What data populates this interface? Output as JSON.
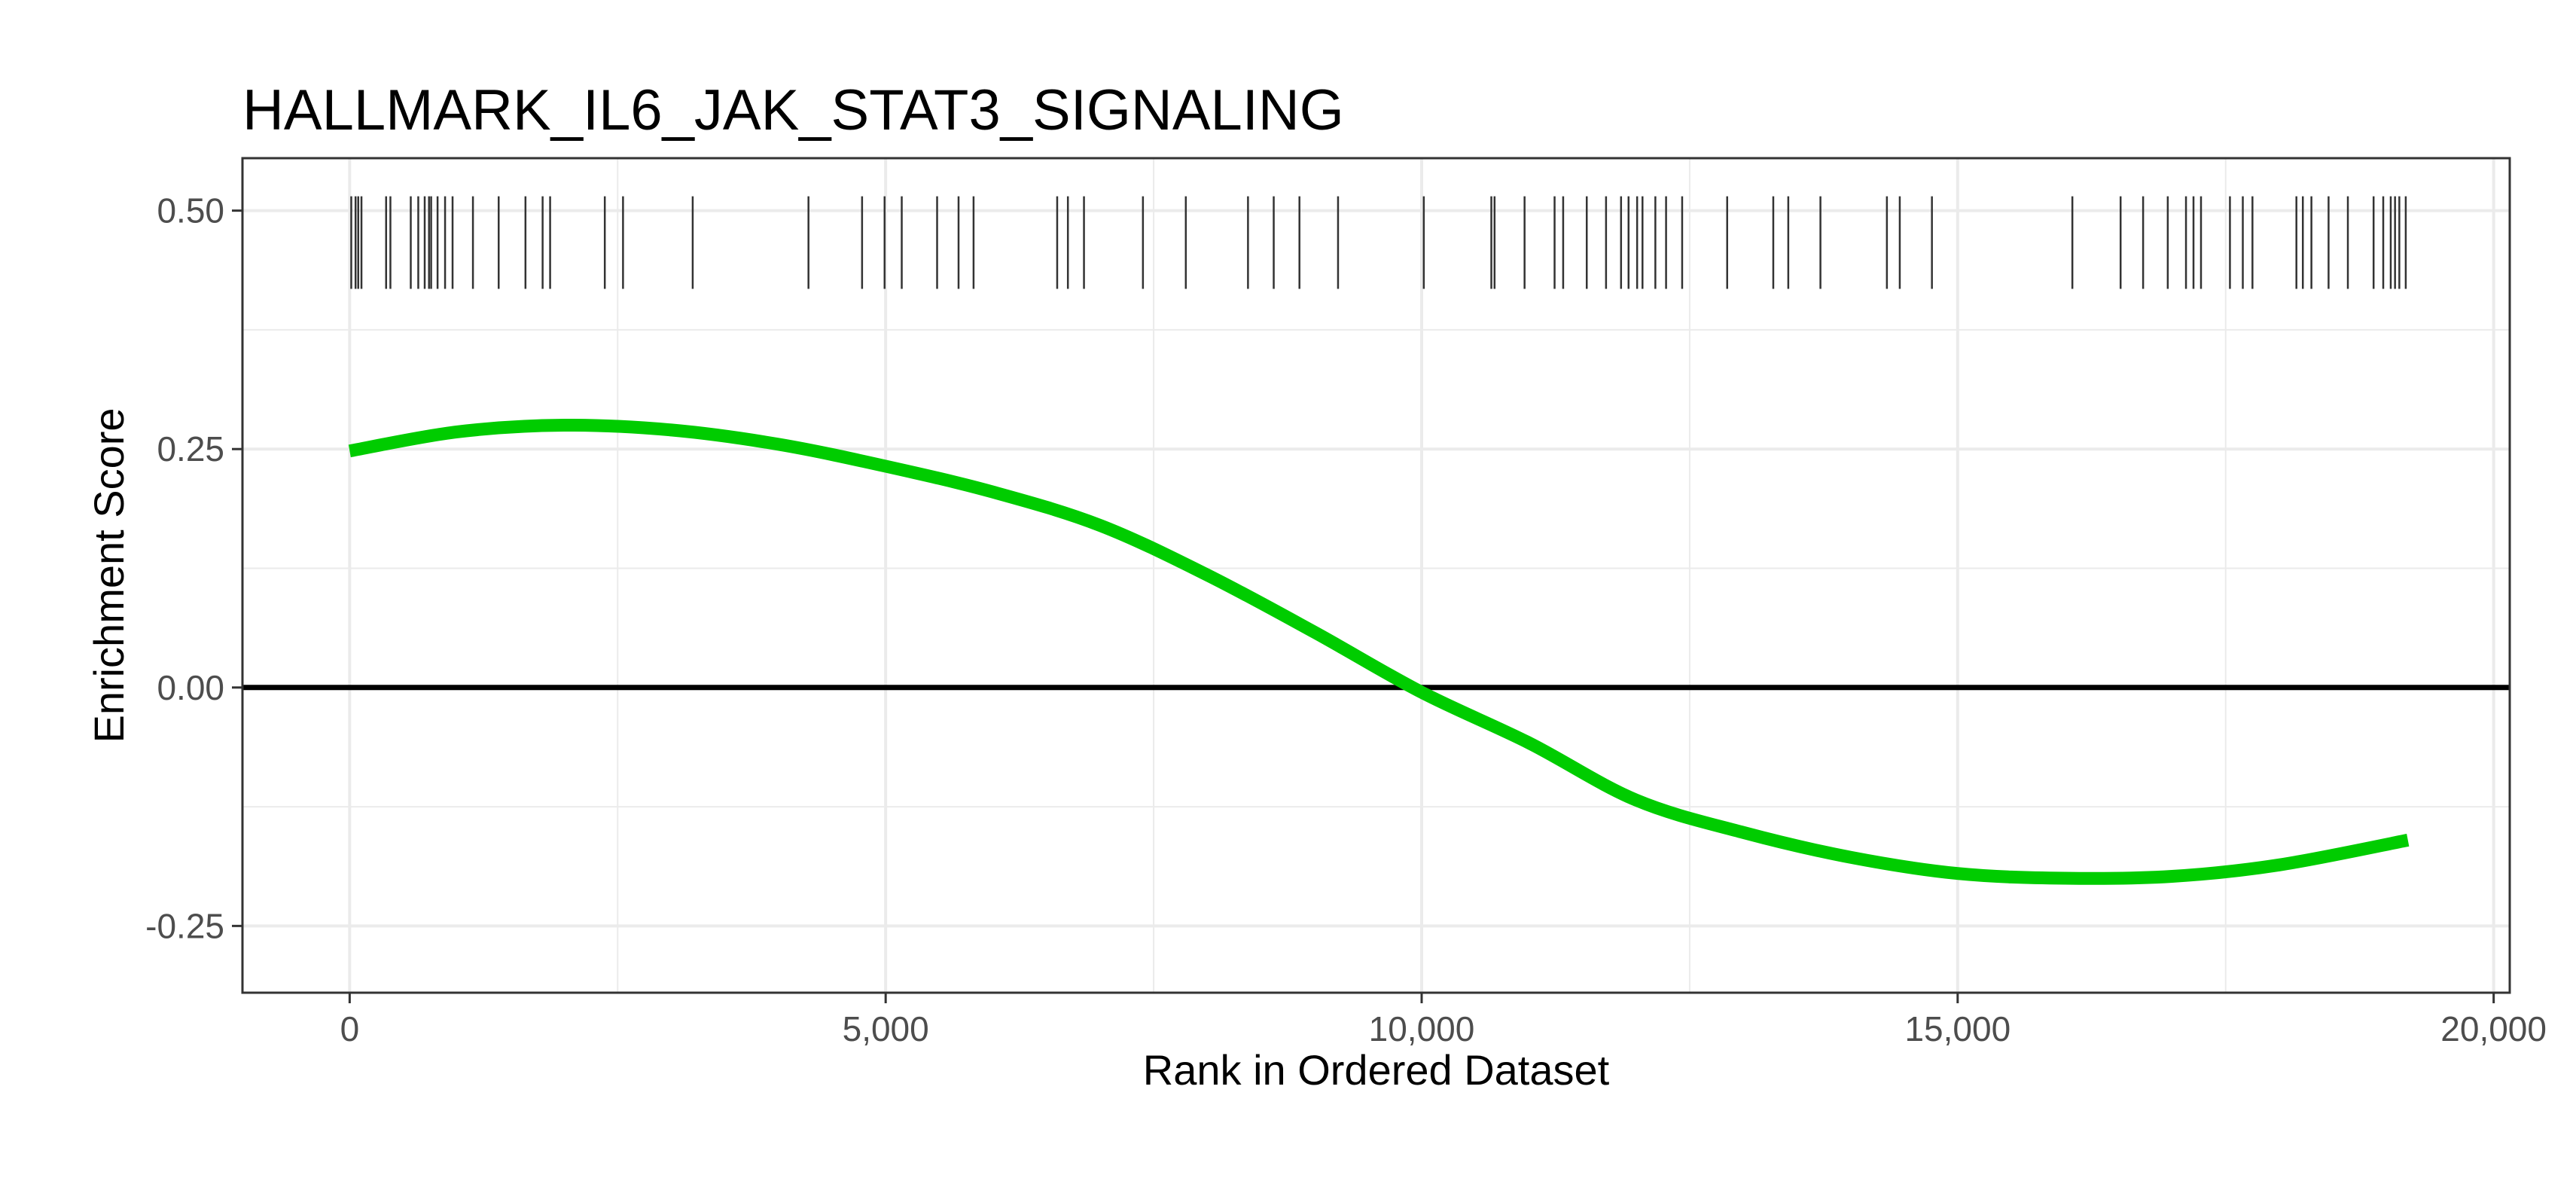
{
  "chart_data": {
    "type": "line",
    "title": "HALLMARK_IL6_JAK_STAT3_SIGNALING",
    "xlabel": "Rank in Ordered Dataset",
    "ylabel": "Enrichment Score",
    "xlim": [
      -1000,
      20150
    ],
    "ylim": [
      -0.32,
      0.555
    ],
    "x_ticks": [
      0,
      5000,
      10000,
      15000,
      20000
    ],
    "x_tick_labels": [
      "0",
      "5,000",
      "10,000",
      "15,000",
      "20,000"
    ],
    "y_ticks": [
      -0.25,
      0,
      0.25,
      0.5
    ],
    "y_tick_labels": [
      "-0.25",
      "0.00",
      "0.25",
      "0.50"
    ],
    "grid": true,
    "colors": {
      "curve": "#00cc00",
      "zero_line": "#000000",
      "hits": "#333333",
      "grid": "#ebebeb",
      "panel_border": "#333333"
    },
    "series": [
      {
        "x": [
          0,
          1000,
          2000,
          3000,
          4000,
          5000,
          6000,
          7000,
          8000,
          9000,
          10000,
          11000,
          12000,
          13000,
          14000,
          15000,
          16000,
          17000,
          18000,
          19200
        ],
        "y": [
          0.248,
          0.268,
          0.275,
          0.27,
          0.255,
          0.232,
          0.205,
          0.17,
          0.118,
          0.058,
          -0.005,
          -0.058,
          -0.118,
          -0.152,
          -0.178,
          -0.195,
          -0.2,
          -0.198,
          -0.186,
          -0.16
        ]
      }
    ],
    "zero_line": 0,
    "hit_band": [
      0.418,
      0.515
    ],
    "hits": [
      15,
      55,
      80,
      110,
      340,
      380,
      570,
      640,
      700,
      740,
      760,
      820,
      890,
      960,
      1150,
      1390,
      1640,
      1800,
      1870,
      2380,
      2550,
      3200,
      4280,
      4780,
      4990,
      5150,
      5480,
      5680,
      5820,
      6600,
      6700,
      6850,
      7400,
      7800,
      8380,
      8620,
      8860,
      9220,
      10020,
      10650,
      10680,
      10960,
      11240,
      11320,
      11540,
      11720,
      11860,
      11930,
      12010,
      12060,
      12180,
      12280,
      12430,
      12850,
      13280,
      13420,
      13720,
      14340,
      14460,
      14760,
      16070,
      16520,
      16730,
      16960,
      17130,
      17200,
      17270,
      17540,
      17660,
      17750,
      18160,
      18220,
      18300,
      18460,
      18640,
      18880,
      18970,
      19040,
      19080,
      19120,
      19180
    ]
  }
}
